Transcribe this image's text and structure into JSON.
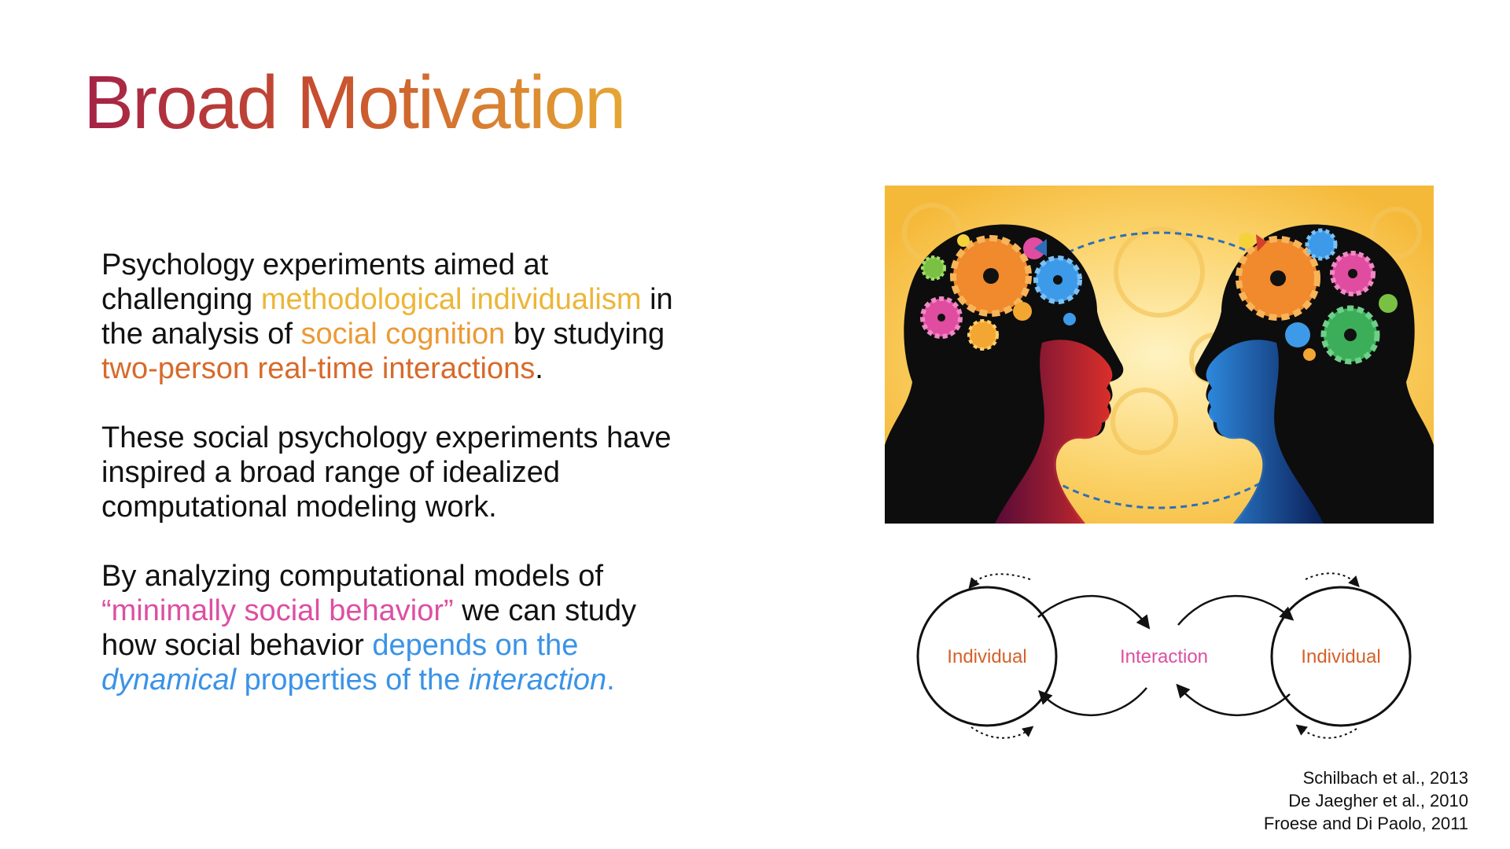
{
  "title": "Broad Motivation",
  "paragraphs": {
    "p1": {
      "a": "Psychology experiments aimed at challenging ",
      "b": "methodological individualism",
      "c": " in the analysis of ",
      "d": "social cognition",
      "e": " by studying ",
      "f": "two-person real-time interactions",
      "g": "."
    },
    "p2": "These social psychology experiments have inspired a broad range of idealized computational modeling work.",
    "p3": {
      "a": "By analyzing computational models of ",
      "b": "“minimally social behavior”",
      "c": " we can study how social behavior ",
      "d": "depends on the ",
      "e": "dynamical",
      "f": " properties of the ",
      "g": "interaction",
      "h": "."
    }
  },
  "diagram": {
    "left_label": "Individual",
    "center_label": "Interaction",
    "right_label": "Individual"
  },
  "references": [
    "Schilbach et al., 2013",
    "De Jaegher et al., 2010",
    "Froese and Di Paolo, 2011"
  ],
  "colors": {
    "title_gradient": [
      "#a42247",
      "#c8502e",
      "#e6a733"
    ],
    "highlight_yellow": "#ecb637",
    "highlight_orange": "#eb9a34",
    "highlight_burnt": "#d76a2a",
    "highlight_pink": "#dd4fa2",
    "highlight_blue": "#3b93e6",
    "diagram_individual": "#d4612a",
    "diagram_interaction": "#dd4fa2"
  },
  "illustration": {
    "description_icon": "two-heads-with-gears-icon"
  }
}
